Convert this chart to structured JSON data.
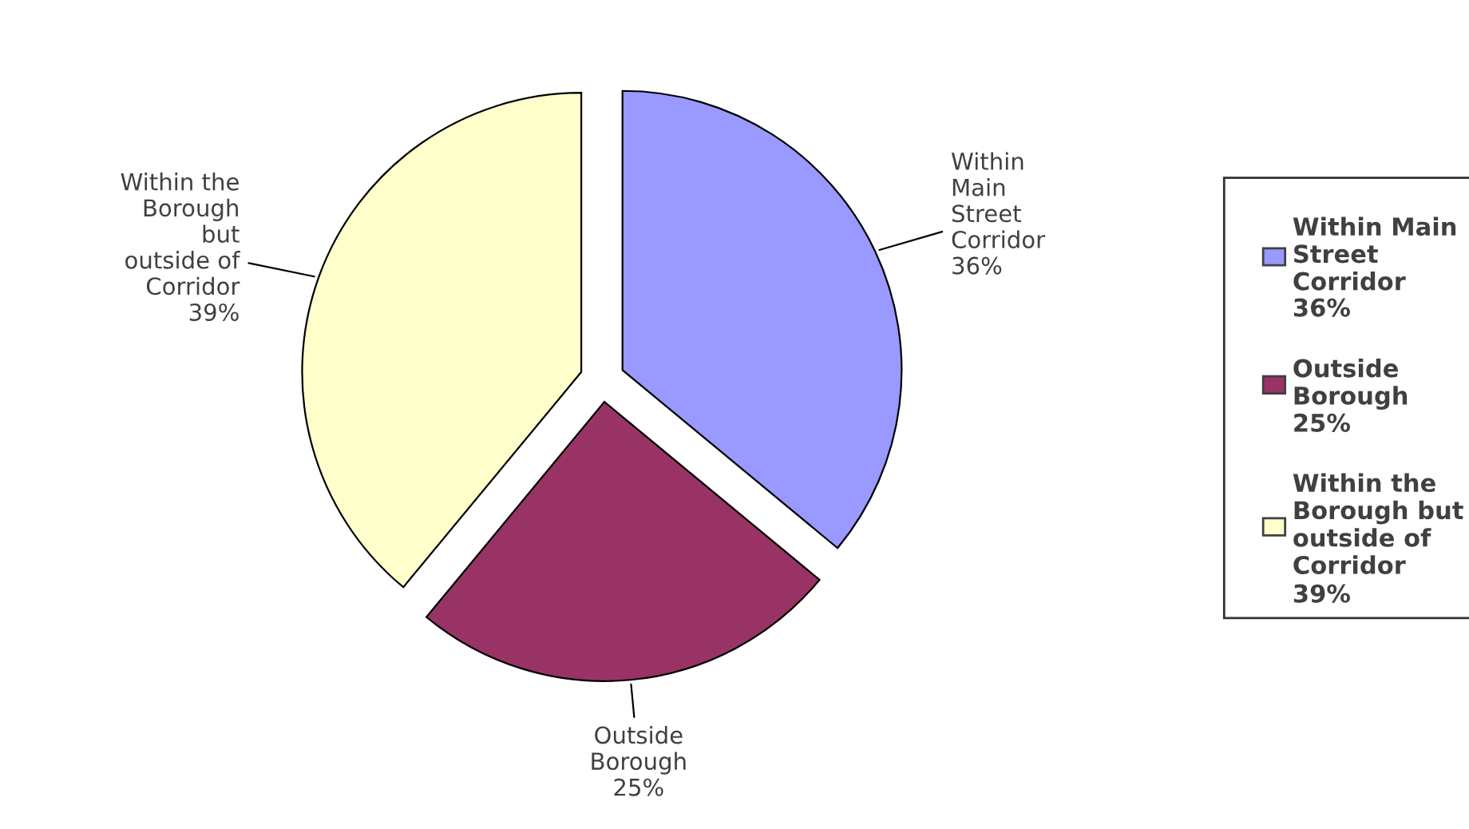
{
  "chart_data": {
    "type": "pie",
    "categories": [
      "Within Main Street Corridor",
      "Outside Borough",
      "Within the Borough but outside of Corridor"
    ],
    "values": [
      36,
      25,
      39
    ],
    "value_labels": [
      "36%",
      "25%",
      "39%"
    ],
    "colors": [
      "#9999ff",
      "#993366",
      "#ffffcc"
    ],
    "legend": "right"
  }
}
